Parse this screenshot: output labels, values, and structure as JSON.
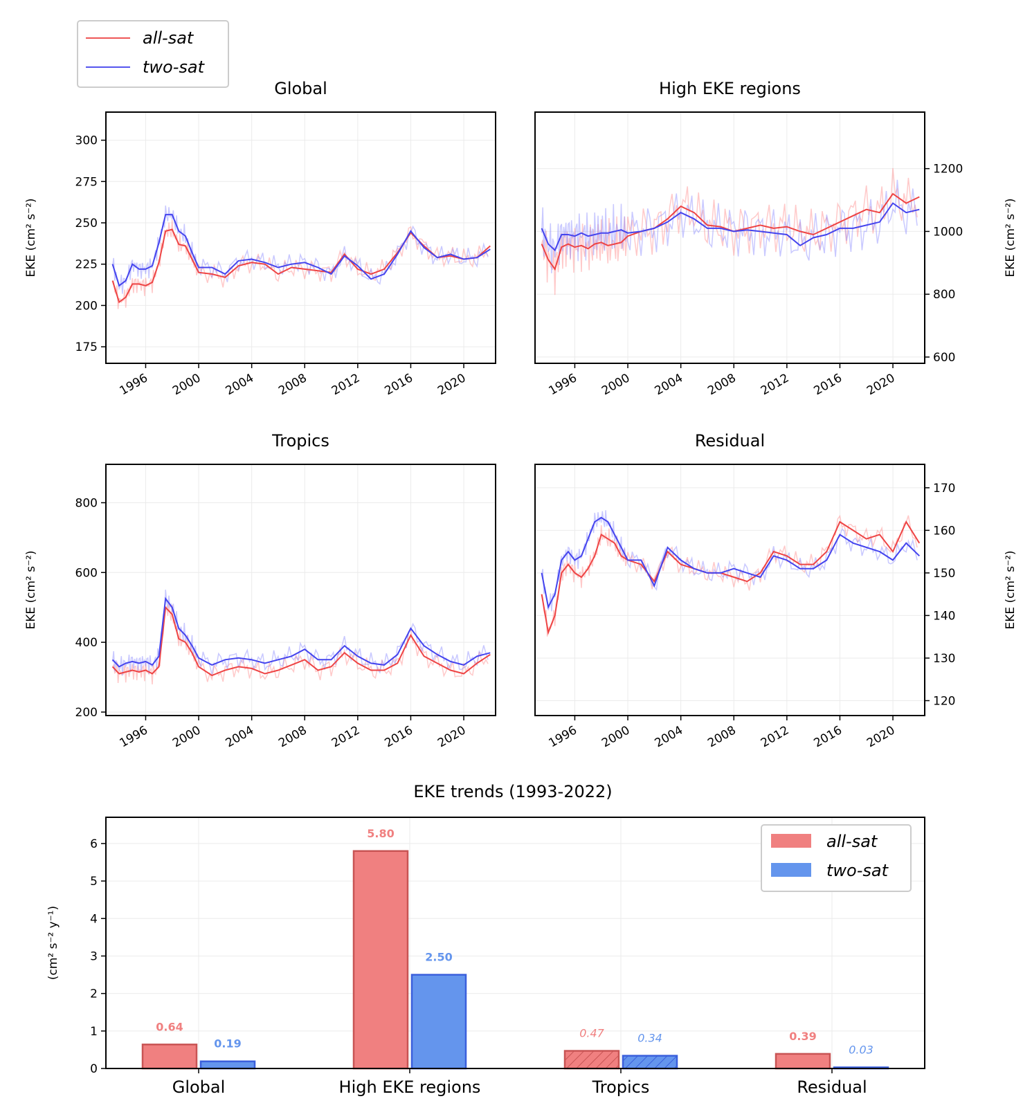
{
  "legend_top": [
    {
      "label": "all-sat",
      "color": "#ee5555"
    },
    {
      "label": "two-sat",
      "color": "#5555ee"
    }
  ],
  "ylabel_ts": "EKE (cm² s⁻²)",
  "colors": {
    "all_sat": "#ee4444",
    "two_sat": "#4444ee",
    "bar_red": "#f08080",
    "bar_blue": "#6495ed",
    "bar_red_edge": "#c85454",
    "bar_blue_edge": "#3a5fdc"
  },
  "chart_data": [
    {
      "type": "line",
      "title": "Global",
      "ylabel": "EKE (cm² s⁻²)",
      "xlim": [
        1993,
        2022.4
      ],
      "ylim": [
        165,
        317
      ],
      "xticks": [
        1996,
        2000,
        2004,
        2008,
        2012,
        2016,
        2020
      ],
      "yticks": [
        175,
        200,
        225,
        250,
        275,
        300
      ],
      "x": [
        1993.5,
        1994,
        1994.5,
        1995,
        1995.5,
        1996,
        1996.5,
        1997,
        1997.5,
        1998,
        1998.5,
        1999,
        1999.5,
        2000,
        2001,
        2002,
        2003,
        2004,
        2005,
        2006,
        2007,
        2008,
        2009,
        2010,
        2011,
        2012,
        2013,
        2014,
        2015,
        2016,
        2017,
        2018,
        2019,
        2020,
        2021,
        2022
      ],
      "series": [
        {
          "name": "all-sat",
          "values": [
            215,
            202,
            205,
            213,
            213,
            212,
            214,
            226,
            245,
            246,
            237,
            236,
            228,
            220,
            219,
            217,
            224,
            226,
            225,
            219,
            223,
            222,
            221,
            220,
            231,
            222,
            219,
            222,
            232,
            244,
            236,
            229,
            230,
            228,
            229,
            236
          ]
        },
        {
          "name": "two-sat",
          "values": [
            225,
            212,
            215,
            225,
            222,
            222,
            224,
            238,
            255,
            255,
            245,
            242,
            232,
            223,
            223,
            219,
            227,
            228,
            226,
            223,
            225,
            226,
            223,
            219,
            230,
            224,
            216,
            219,
            231,
            245,
            235,
            229,
            231,
            228,
            229,
            234
          ]
        }
      ]
    },
    {
      "type": "line",
      "title": "High EKE regions",
      "ylabel": "EKE (cm² s⁻²)",
      "xlim": [
        1993,
        2022.4
      ],
      "ylim": [
        580,
        1380
      ],
      "xticks": [
        1996,
        2000,
        2004,
        2008,
        2012,
        2016,
        2020
      ],
      "yticks": [
        600,
        800,
        1000,
        1200
      ],
      "x": [
        1993.5,
        1994,
        1994.5,
        1995,
        1995.5,
        1996,
        1996.5,
        1997,
        1997.5,
        1998,
        1998.5,
        1999,
        1999.5,
        2000,
        2001,
        2002,
        2003,
        2004,
        2005,
        2006,
        2007,
        2008,
        2009,
        2010,
        2011,
        2012,
        2013,
        2014,
        2015,
        2016,
        2017,
        2018,
        2019,
        2020,
        2021,
        2022
      ],
      "series": [
        {
          "name": "all-sat",
          "values": [
            960,
            910,
            880,
            950,
            960,
            950,
            955,
            945,
            960,
            965,
            955,
            960,
            965,
            985,
            1000,
            1010,
            1040,
            1080,
            1060,
            1020,
            1015,
            1000,
            1010,
            1020,
            1010,
            1015,
            1000,
            990,
            1010,
            1030,
            1050,
            1070,
            1060,
            1120,
            1090,
            1110
          ]
        },
        {
          "name": "two-sat",
          "values": [
            1010,
            960,
            940,
            990,
            990,
            985,
            995,
            985,
            990,
            995,
            995,
            1000,
            1005,
            995,
            1000,
            1010,
            1030,
            1060,
            1040,
            1010,
            1010,
            1000,
            1005,
            1000,
            995,
            990,
            955,
            980,
            990,
            1010,
            1010,
            1020,
            1030,
            1090,
            1060,
            1070
          ]
        }
      ]
    },
    {
      "type": "line",
      "title": "Tropics",
      "ylabel": "EKE (cm² s⁻²)",
      "xlim": [
        1993,
        2022.4
      ],
      "ylim": [
        190,
        910
      ],
      "xticks": [
        1996,
        2000,
        2004,
        2008,
        2012,
        2016,
        2020
      ],
      "yticks": [
        200,
        400,
        600,
        800
      ],
      "x": [
        1993.5,
        1994,
        1994.5,
        1995,
        1995.5,
        1996,
        1996.5,
        1997,
        1997.5,
        1998,
        1998.5,
        1999,
        1999.5,
        2000,
        2001,
        2002,
        2003,
        2004,
        2005,
        2006,
        2007,
        2008,
        2009,
        2010,
        2011,
        2012,
        2013,
        2014,
        2015,
        2016,
        2017,
        2018,
        2019,
        2020,
        2021,
        2022
      ],
      "series": [
        {
          "name": "all-sat",
          "values": [
            330,
            310,
            315,
            320,
            315,
            320,
            310,
            330,
            500,
            480,
            410,
            400,
            370,
            330,
            305,
            320,
            330,
            325,
            310,
            320,
            335,
            350,
            320,
            330,
            370,
            340,
            320,
            320,
            340,
            420,
            360,
            340,
            320,
            310,
            340,
            365
          ]
        },
        {
          "name": "two-sat",
          "values": [
            350,
            330,
            340,
            345,
            340,
            345,
            335,
            360,
            525,
            500,
            440,
            420,
            390,
            355,
            335,
            350,
            355,
            350,
            340,
            350,
            360,
            380,
            350,
            350,
            390,
            360,
            340,
            335,
            365,
            440,
            390,
            365,
            345,
            335,
            360,
            370
          ]
        }
      ]
    },
    {
      "type": "line",
      "title": "Residual",
      "ylabel": "EKE (cm² s⁻²)",
      "xlim": [
        1993,
        2022.4
      ],
      "ylim": [
        116.5,
        175.5
      ],
      "xticks": [
        1996,
        2000,
        2004,
        2008,
        2012,
        2016,
        2020
      ],
      "yticks": [
        120,
        130,
        140,
        150,
        160,
        170
      ],
      "x": [
        1993.5,
        1994,
        1994.5,
        1995,
        1995.5,
        1996,
        1996.5,
        1997,
        1997.5,
        1998,
        1998.5,
        1999,
        1999.5,
        2000,
        2001,
        2002,
        2003,
        2004,
        2005,
        2006,
        2007,
        2008,
        2009,
        2010,
        2011,
        2012,
        2013,
        2014,
        2015,
        2016,
        2017,
        2018,
        2019,
        2020,
        2021,
        2022
      ],
      "series": [
        {
          "name": "all-sat",
          "values": [
            145,
            136,
            140,
            150,
            152,
            150,
            149,
            151,
            154,
            159,
            158,
            157,
            154,
            153,
            152,
            148,
            155,
            152,
            151,
            150,
            150,
            149,
            148,
            150,
            155,
            154,
            152,
            152,
            155,
            162,
            160,
            158,
            159,
            155,
            162,
            157
          ]
        },
        {
          "name": "two-sat",
          "values": [
            150,
            142,
            145,
            153,
            155,
            153,
            154,
            158,
            162,
            163,
            162,
            159,
            156,
            153,
            153,
            147,
            156,
            153,
            151,
            150,
            150,
            151,
            150,
            149,
            154,
            153,
            151,
            151,
            153,
            159,
            157,
            156,
            155,
            153,
            157,
            154
          ]
        }
      ]
    },
    {
      "type": "bar",
      "title": "EKE trends (1993-2022)",
      "ylabel": "(cm² s⁻² y⁻¹)",
      "categories": [
        "Global",
        "High EKE regions",
        "Tropics",
        "Residual"
      ],
      "ylim": [
        0,
        6.7
      ],
      "yticks": [
        0,
        1,
        2,
        3,
        4,
        5,
        6
      ],
      "legend": "top-right",
      "series": [
        {
          "name": "all-sat",
          "values": [
            0.64,
            5.8,
            0.47,
            0.39
          ],
          "labels": [
            "0.64",
            "5.80",
            "0.47",
            "0.39"
          ],
          "hatched": [
            false,
            false,
            true,
            false
          ],
          "italic_label": [
            false,
            false,
            true,
            false
          ]
        },
        {
          "name": "two-sat",
          "values": [
            0.19,
            2.5,
            0.34,
            0.03
          ],
          "labels": [
            "0.19",
            "2.50",
            "0.34",
            "0.03"
          ],
          "hatched": [
            false,
            false,
            true,
            true
          ],
          "italic_label": [
            false,
            false,
            true,
            true
          ]
        }
      ]
    }
  ]
}
